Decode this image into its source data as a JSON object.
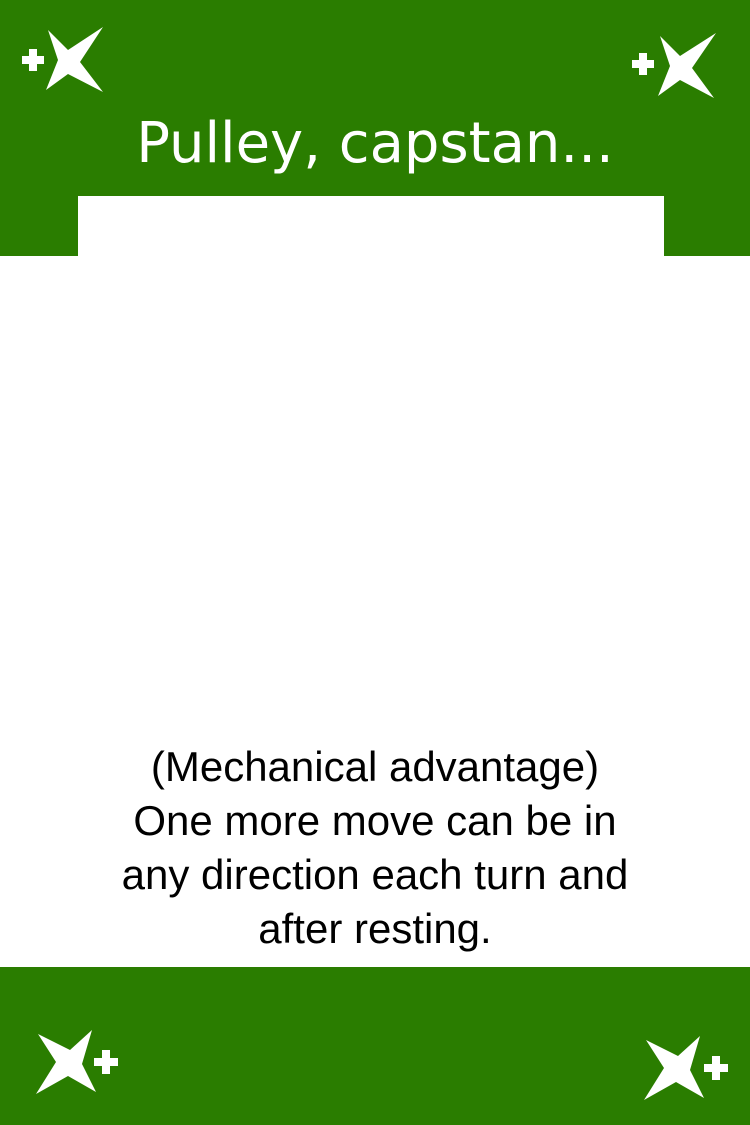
{
  "card": {
    "title": "Pulley, capstan...",
    "flavor": "(Mechanical advantage)",
    "effect_lines": [
      "One more move can be in",
      "any direction each turn and",
      "after resting."
    ]
  },
  "icons": {
    "corner": "sparkle-plus-icon"
  },
  "colors": {
    "band": "#2a7d00",
    "face": "#ffffff",
    "text": "#000000"
  }
}
